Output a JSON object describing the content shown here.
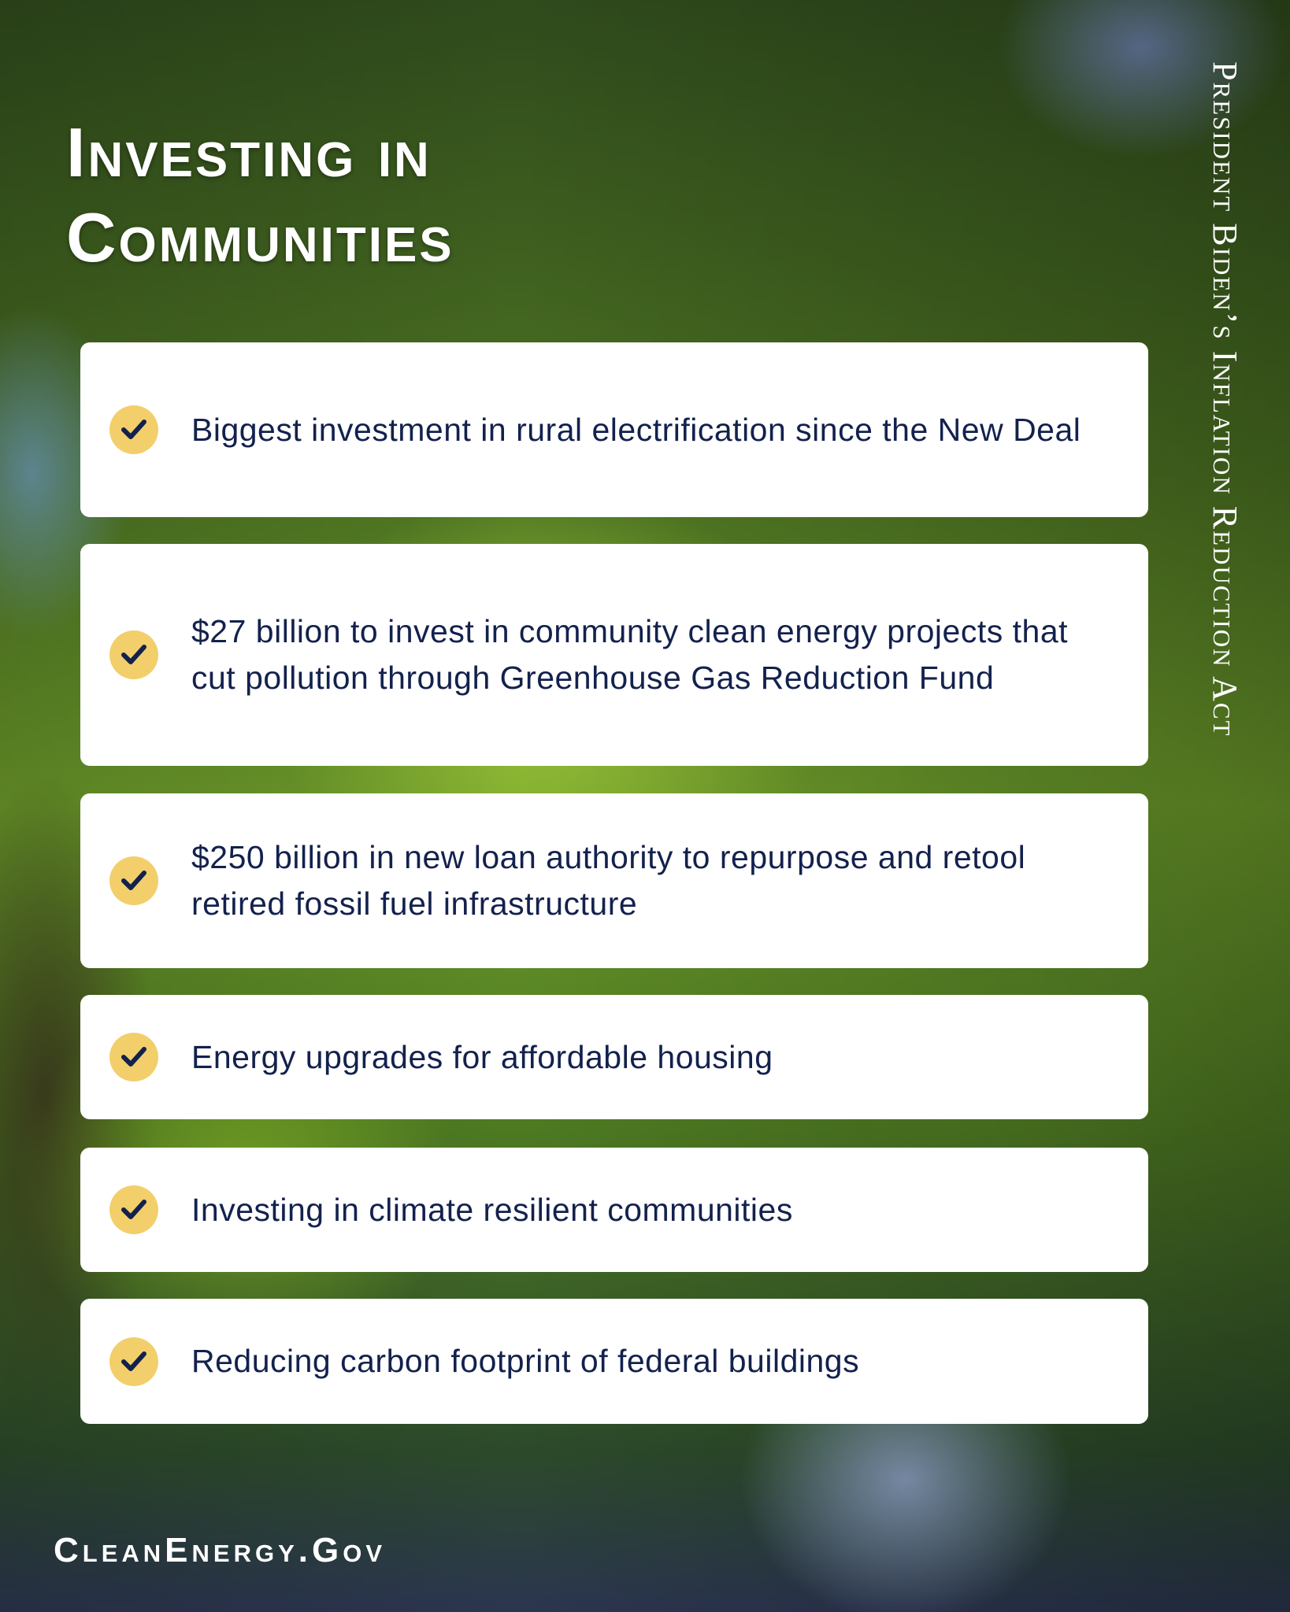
{
  "title": {
    "line1": "Investing in",
    "line2": "Communities"
  },
  "side_label": "President Biden’s Inflation Reduction Act",
  "items": [
    {
      "icon": "check-icon",
      "text": "Biggest investment in rural electrification since the New Deal"
    },
    {
      "icon": "check-icon",
      "text": "$27 billion to invest in community clean energy projects that cut pollution through Greenhouse Gas Reduction Fund"
    },
    {
      "icon": "check-icon",
      "text": "$250 billion in new loan authority to repurpose and retool retired fossil fuel infrastructure"
    },
    {
      "icon": "check-icon",
      "text": "Energy upgrades for affordable housing"
    },
    {
      "icon": "check-icon",
      "text": "Investing in climate resilient communities"
    },
    {
      "icon": "check-icon",
      "text": "Reducing carbon footprint of federal buildings"
    }
  ],
  "footer": "CleanEnergy.Gov",
  "colors": {
    "text": "#13214d",
    "check_bg": "#f2cf6b",
    "card": "#ffffff"
  }
}
